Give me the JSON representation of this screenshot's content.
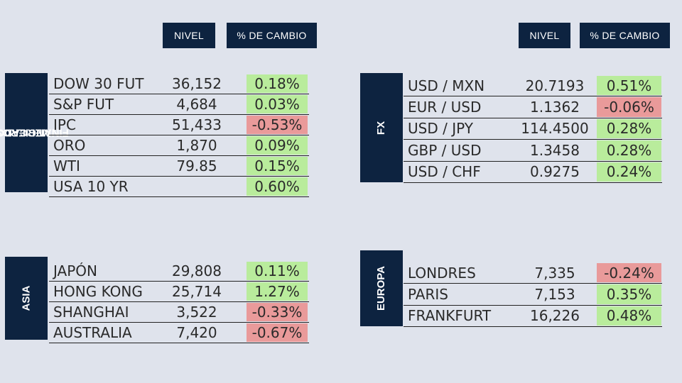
{
  "headers": {
    "nivel": "NIVEL",
    "cambio": "% DE CAMBIO"
  },
  "colors": {
    "header_bg": "#0d2340",
    "positive": "#b9ec9c",
    "negative": "#e99a9a",
    "background": "#dfe3ec"
  },
  "mercados": {
    "label_line1": "MERCADOS",
    "label_line2": "FINANCIEROS",
    "rows": [
      {
        "name": "DOW 30 FUT",
        "level": "36,152",
        "change": "0.18%",
        "dir": "pos"
      },
      {
        "name": "S&P FUT",
        "level": "4,684",
        "change": "0.03%",
        "dir": "pos"
      },
      {
        "name": "IPC",
        "level": "51,433",
        "change": "-0.53%",
        "dir": "neg"
      },
      {
        "name": "ORO",
        "level": "1,870",
        "change": "0.09%",
        "dir": "pos"
      },
      {
        "name": "WTI",
        "level": "79.85",
        "change": "0.15%",
        "dir": "pos"
      },
      {
        "name": "USA 10 YR",
        "level": "",
        "change": "0.60%",
        "dir": "pos"
      }
    ]
  },
  "fx": {
    "label": "FX",
    "rows": [
      {
        "name": "USD / MXN",
        "level": "20.7193",
        "change": "0.51%",
        "dir": "pos"
      },
      {
        "name": "EUR / USD",
        "level": "1.1362",
        "change": "-0.06%",
        "dir": "neg"
      },
      {
        "name": "USD / JPY",
        "level": "114.4500",
        "change": "0.28%",
        "dir": "pos"
      },
      {
        "name": "GBP / USD",
        "level": "1.3458",
        "change": "0.28%",
        "dir": "pos"
      },
      {
        "name": "USD / CHF",
        "level": "0.9275",
        "change": "0.24%",
        "dir": "pos"
      }
    ]
  },
  "asia": {
    "label": "ASIA",
    "rows": [
      {
        "name": "JAPÓN",
        "level": "29,808",
        "change": "0.11%",
        "dir": "pos"
      },
      {
        "name": "HONG KONG",
        "level": "25,714",
        "change": "1.27%",
        "dir": "pos"
      },
      {
        "name": "SHANGHAI",
        "level": "3,522",
        "change": "-0.33%",
        "dir": "neg"
      },
      {
        "name": "AUSTRALIA",
        "level": "7,420",
        "change": "-0.67%",
        "dir": "neg"
      }
    ]
  },
  "europa": {
    "label": "EUROPA",
    "rows": [
      {
        "name": "LONDRES",
        "level": "7,335",
        "change": "-0.24%",
        "dir": "neg"
      },
      {
        "name": "PARIS",
        "level": "7,153",
        "change": "0.35%",
        "dir": "pos"
      },
      {
        "name": "FRANKFURT",
        "level": "16,226",
        "change": "0.48%",
        "dir": "pos"
      }
    ]
  }
}
